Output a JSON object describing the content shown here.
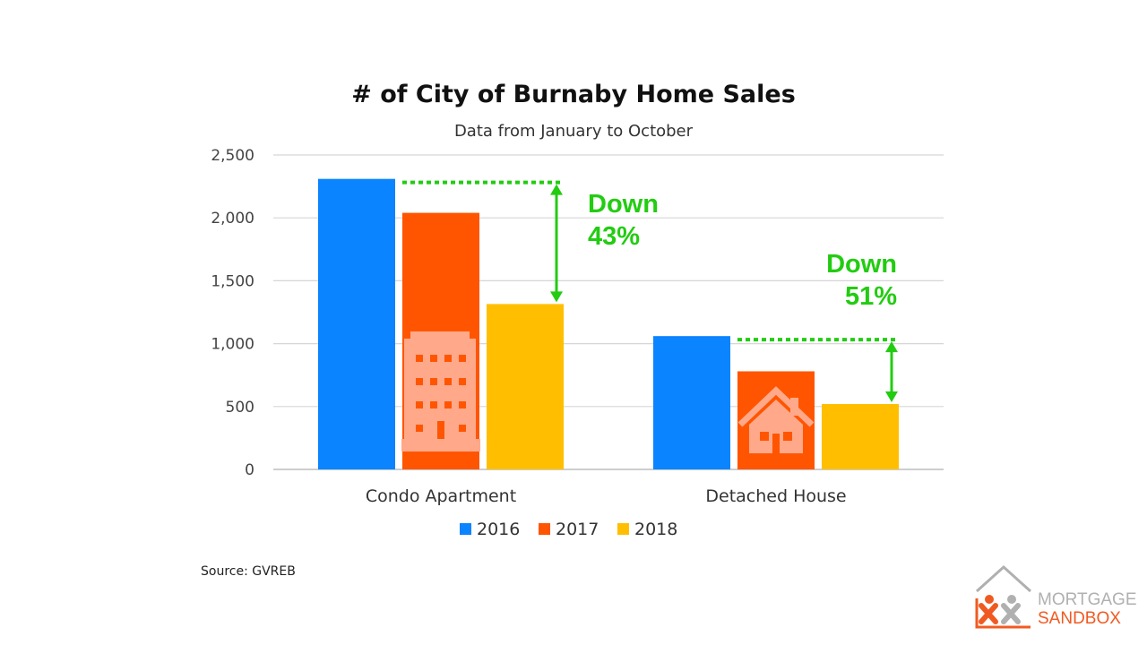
{
  "chart_data": {
    "type": "bar",
    "title": "# of City of Burnaby Home Sales",
    "subtitle": "Data from January to October",
    "categories": [
      "Condo Apartment",
      "Detached House"
    ],
    "series": [
      {
        "name": "2016",
        "values": [
          2310,
          1060
        ],
        "color": "#0a84ff"
      },
      {
        "name": "2017",
        "values": [
          2040,
          780
        ],
        "color": "#ff5500"
      },
      {
        "name": "2018",
        "values": [
          1315,
          520
        ],
        "color": "#ffbf00"
      }
    ],
    "ylim": [
      0,
      2500
    ],
    "yticks": [
      0,
      500,
      1000,
      1500,
      2000,
      2500
    ],
    "ytick_labels": [
      "0",
      "500",
      "1,000",
      "1,500",
      "2,000",
      "2,500"
    ],
    "grid": true,
    "legend_position": "bottom",
    "annotations": [
      {
        "lines": [
          "Down",
          "43%"
        ],
        "category": "Condo Apartment",
        "from_series": "2016",
        "to_series": "2018"
      },
      {
        "lines": [
          "Down",
          "51%"
        ],
        "category": "Detached House",
        "from_series": "2016",
        "to_series": "2018"
      }
    ],
    "annotation_color": "#22cc11",
    "icons": [
      "building-icon",
      "house-icon"
    ]
  },
  "source": "Source: GVREB",
  "logo": {
    "line1": "MORTGAGE",
    "line2": "SANDBOX",
    "icon": "mortgage-sandbox-logo-icon",
    "colors": {
      "orange": "#f05a22",
      "gray": "#b0b0b0"
    }
  }
}
